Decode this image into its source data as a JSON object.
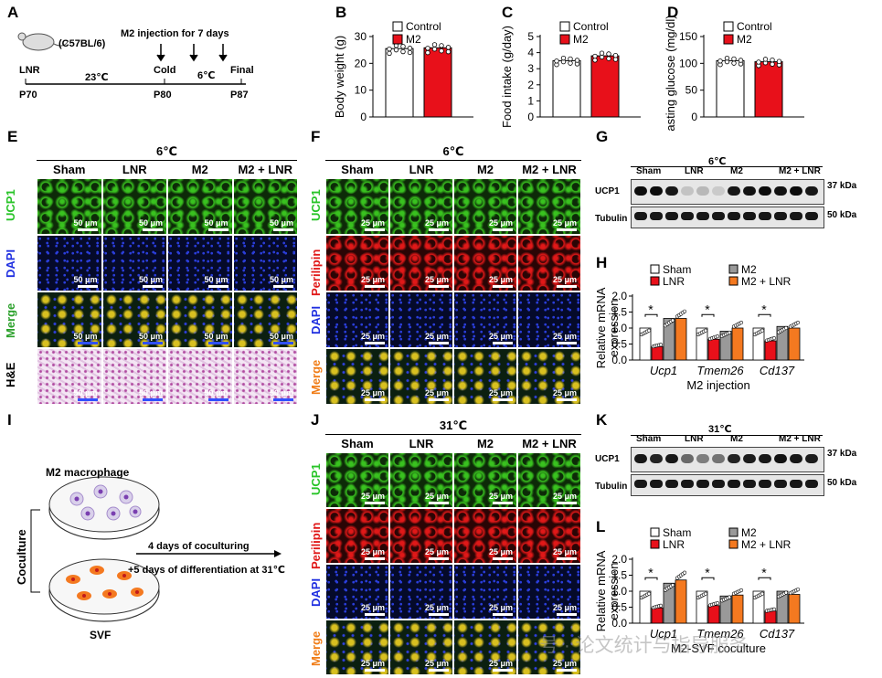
{
  "panels": {
    "A": "A",
    "B": "B",
    "C": "C",
    "D": "D",
    "E": "E",
    "F": "F",
    "G": "G",
    "H": "H",
    "I": "I",
    "J": "J",
    "K": "K",
    "L": "L"
  },
  "timeline": {
    "strain": "(C57BL/6)",
    "injection": "M2 injection for 7 days",
    "temp1": "23℃",
    "temp2": "6℃",
    "events": [
      "LNR",
      "Cold",
      "Final"
    ],
    "days": [
      "P70",
      "P80",
      "P87"
    ]
  },
  "bar_legend": {
    "control": "Control",
    "m2": "M2"
  },
  "colors": {
    "control": "#ffffff",
    "m2": "#e8101a",
    "sham": "#ffffff",
    "lnr": "#e8101a",
    "m2grey": "#999999",
    "m2lnr": "#f47920"
  },
  "temps": {
    "cold": "6℃",
    "warm": "31℃"
  },
  "groups4": [
    "Sham",
    "LNR",
    "M2",
    "M2 + LNR"
  ],
  "panelE": {
    "rows": [
      "UCP1",
      "DAPI",
      "Merge",
      "H&E"
    ],
    "scale": "50 μm"
  },
  "panelF": {
    "rows": [
      "UCP1",
      "Perilipin",
      "DAPI",
      "Merge"
    ],
    "scale": "25 μm"
  },
  "panelJ": {
    "rows": [
      "UCP1",
      "Perilipin",
      "DAPI",
      "Merge"
    ],
    "scale": "25 μm"
  },
  "western": {
    "ucp1": "UCP1",
    "tubulin": "Tubulin",
    "kda37": "37 kDa",
    "kda50": "50 kDa"
  },
  "mrna": {
    "ylabel": "Relative mRNA expression",
    "legend": [
      "Sham",
      "LNR",
      "M2",
      "M2 + LNR"
    ],
    "genes": [
      "Ucp1",
      "Tmem26",
      "Cd137"
    ],
    "sig": "*",
    "xH": "M2 injection",
    "xL": "M2-SVF coculture"
  },
  "panelI": {
    "macrophage": "M2 macrophage",
    "coculture": "Coculture",
    "step1": "4 days of coculturing",
    "step2": "+5 days of differentiation at 31℃",
    "svf": "SVF"
  },
  "watermark": "号 · 论文统计与指导服务",
  "chart_data": [
    {
      "type": "bar",
      "id": "B",
      "ylabel": "Body weight (g)",
      "categories": [
        "Control",
        "M2"
      ],
      "values": [
        25.5,
        25.8
      ],
      "ylim": [
        0,
        30
      ],
      "ticks": [
        0,
        10,
        20,
        30
      ]
    },
    {
      "type": "bar",
      "id": "C",
      "ylabel": "Food intake (g/day)",
      "categories": [
        "Control",
        "M2"
      ],
      "values": [
        3.5,
        3.8
      ],
      "ylim": [
        0,
        5
      ],
      "ticks": [
        0,
        1,
        2,
        3,
        4,
        5
      ]
    },
    {
      "type": "bar",
      "id": "D",
      "ylabel": "Fasting glucose (mg/dl)",
      "categories": [
        "Control",
        "M2"
      ],
      "values": [
        105,
        103
      ],
      "ylim": [
        0,
        150
      ],
      "ticks": [
        0,
        50,
        100,
        150
      ]
    },
    {
      "type": "bar",
      "id": "H",
      "ylabel": "Relative mRNA expression",
      "categories": [
        "Ucp1",
        "Tmem26",
        "Cd137"
      ],
      "series": [
        {
          "name": "Sham",
          "values": [
            1.0,
            1.0,
            1.0
          ]
        },
        {
          "name": "LNR",
          "values": [
            0.42,
            0.65,
            0.6
          ]
        },
        {
          "name": "M2",
          "values": [
            1.3,
            0.9,
            1.05
          ]
        },
        {
          "name": "M2 + LNR",
          "values": [
            1.3,
            1.0,
            1.0
          ]
        }
      ],
      "ylim": [
        0,
        2.0
      ],
      "ticks": [
        0,
        0.5,
        1.0,
        1.5,
        2.0
      ]
    },
    {
      "type": "bar",
      "id": "L",
      "ylabel": "Relative mRNA expression",
      "categories": [
        "Ucp1",
        "Tmem26",
        "Cd137"
      ],
      "series": [
        {
          "name": "Sham",
          "values": [
            1.0,
            1.0,
            1.0
          ]
        },
        {
          "name": "LNR",
          "values": [
            0.48,
            0.55,
            0.38
          ]
        },
        {
          "name": "M2",
          "values": [
            1.25,
            0.85,
            1.0
          ]
        },
        {
          "name": "M2 + LNR",
          "values": [
            1.35,
            0.88,
            0.9
          ]
        }
      ],
      "ylim": [
        0,
        2.0
      ],
      "ticks": [
        0,
        0.5,
        1.0,
        1.5,
        2.0
      ]
    }
  ]
}
